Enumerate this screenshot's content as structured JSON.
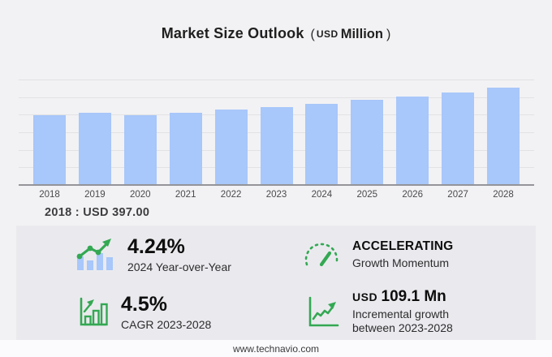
{
  "title": {
    "main": "Market Size Outlook",
    "open_paren": "(",
    "currency": "USD",
    "unit": "Million",
    "close_paren": ")"
  },
  "chart_data": {
    "type": "bar",
    "title": "Market Size Outlook (USD Million)",
    "categories": [
      "2018",
      "2019",
      "2020",
      "2021",
      "2022",
      "2023",
      "2024",
      "2025",
      "2026",
      "2027",
      "2028"
    ],
    "values": [
      397,
      409,
      397,
      413,
      428,
      443,
      462,
      483,
      505,
      528,
      552
    ],
    "ylim": [
      0,
      600
    ],
    "grid_interval": 100,
    "grid": "horizontal, unlabeled",
    "legend": "none",
    "bar_color": "#a8c7fa",
    "annotation": "2018 : USD 397.00"
  },
  "callout": {
    "text": "2018 : USD  397.00"
  },
  "stats": {
    "yoy": {
      "icon": "bars-trend-up-icon",
      "value": "4.24%",
      "label": "2024 Year-over-Year"
    },
    "momentum": {
      "icon": "speedometer-icon",
      "value": "ACCELERATING",
      "label": "Growth Momentum"
    },
    "cagr": {
      "icon": "growth-bars-arrow-icon",
      "value": "4.5%",
      "label": "CAGR 2023-2028"
    },
    "incremental": {
      "icon": "line-chart-arrow-icon",
      "currency": "USD",
      "value": "109.1 Mn",
      "label_line1": "Incremental growth",
      "label_line2": "between 2023-2028"
    }
  },
  "footer": {
    "website": "www.technavio.com"
  },
  "colors": {
    "bar": "#a8c7fa",
    "accent_green": "#34a853",
    "background": "#f2f2f4",
    "panel": "#eaeaee",
    "axis": "#94949a",
    "gridline": "#e2e2e5"
  }
}
